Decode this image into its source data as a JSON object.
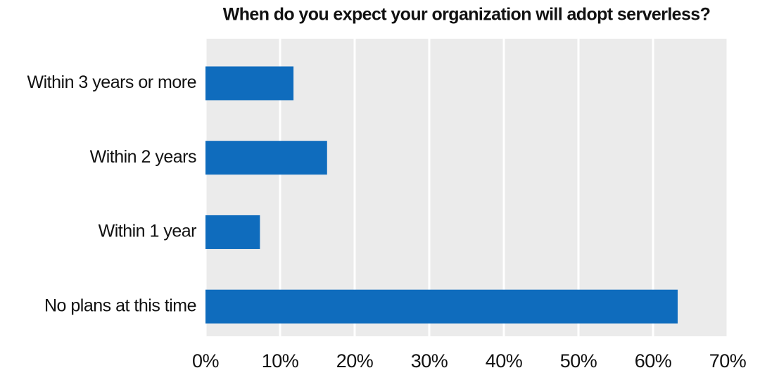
{
  "chart_data": {
    "type": "barh",
    "title": "When do you expect your organization will adopt serverless?",
    "categories": [
      "Within 3 years or more",
      "Within 2 years",
      "Within 1 year",
      "No plans at this time"
    ],
    "values": [
      11.8,
      16.3,
      7.3,
      63.3
    ],
    "color": "#0f6cbd",
    "xlim": [
      0,
      70
    ],
    "xticks": [
      {
        "value": 0,
        "label": "0%"
      },
      {
        "value": 10,
        "label": "10%"
      },
      {
        "value": 20,
        "label": "20%"
      },
      {
        "value": 30,
        "label": "30%"
      },
      {
        "value": 40,
        "label": "40%"
      },
      {
        "value": 50,
        "label": "50%"
      },
      {
        "value": 60,
        "label": "60%"
      },
      {
        "value": 70,
        "label": "70%"
      }
    ],
    "grid": true
  }
}
